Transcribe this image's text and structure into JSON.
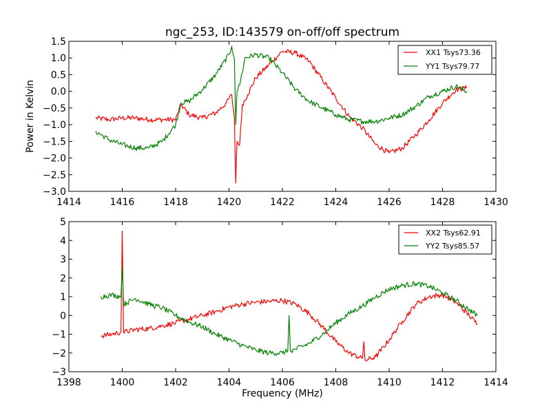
{
  "figure_title": "ngc_253, ID:143579 on-off/off spectrum",
  "colors": {
    "xx": "#ff0000",
    "yy": "#008000",
    "axis": "#000000",
    "background": "#ffffff"
  },
  "chart_data": [
    {
      "type": "line",
      "title": "ngc_253, ID:143579 on-off/off spectrum",
      "xlabel": "",
      "ylabel": "Power in Kelvin",
      "xlim": [
        1414,
        1430
      ],
      "ylim": [
        -3.0,
        1.5
      ],
      "xticks": [
        "1414",
        "1416",
        "1418",
        "1420",
        "1422",
        "1424",
        "1426",
        "1428",
        "1430"
      ],
      "yticks": [
        "1.5",
        "1.0",
        "0.5",
        "0.0",
        "−0.5",
        "−1.0",
        "−1.5",
        "−2.0",
        "−2.5",
        "−3.0"
      ],
      "ytick_values": [
        1.5,
        1.0,
        0.5,
        0.0,
        -0.5,
        -1.0,
        -1.5,
        -2.0,
        -2.5,
        -3.0
      ],
      "xtick_values": [
        1414,
        1416,
        1418,
        1420,
        1422,
        1424,
        1426,
        1428,
        1430
      ],
      "grid": false,
      "legend_position": "top-right",
      "series": [
        {
          "name": "XX1 Tsys73.36",
          "color": "#ff0000",
          "x": [
            1415.0,
            1415.5,
            1416.0,
            1416.5,
            1417.0,
            1417.5,
            1418.0,
            1418.2,
            1418.5,
            1419.0,
            1419.5,
            1419.9,
            1420.1,
            1420.2,
            1420.25,
            1420.3,
            1420.4,
            1420.5,
            1420.7,
            1421.0,
            1421.5,
            1422.0,
            1422.5,
            1423.0,
            1423.5,
            1424.0,
            1424.5,
            1425.0,
            1425.5,
            1426.0,
            1426.5,
            1427.0,
            1427.5,
            1428.0,
            1428.5,
            1428.9
          ],
          "y": [
            -0.8,
            -0.85,
            -0.8,
            -0.8,
            -0.85,
            -0.85,
            -0.85,
            -0.4,
            -0.7,
            -0.8,
            -0.65,
            -0.35,
            -0.1,
            -0.8,
            -2.75,
            -1.5,
            -1.6,
            -0.4,
            -0.1,
            0.4,
            0.8,
            1.2,
            1.15,
            0.9,
            0.35,
            -0.2,
            -0.75,
            -1.1,
            -1.6,
            -1.85,
            -1.7,
            -1.3,
            -0.85,
            -0.35,
            0.05,
            0.1
          ]
        },
        {
          "name": "YY1 Tsys79.77",
          "color": "#008000",
          "x": [
            1415.0,
            1415.5,
            1416.0,
            1416.5,
            1417.0,
            1417.5,
            1418.0,
            1418.2,
            1418.5,
            1419.0,
            1419.5,
            1420.0,
            1420.1,
            1420.2,
            1420.25,
            1420.3,
            1420.4,
            1420.6,
            1421.0,
            1421.5,
            1422.0,
            1422.5,
            1423.0,
            1423.5,
            1424.0,
            1424.5,
            1425.0,
            1425.5,
            1426.0,
            1426.5,
            1427.0,
            1427.5,
            1428.0,
            1428.5,
            1428.9
          ],
          "y": [
            -1.2,
            -1.45,
            -1.6,
            -1.7,
            -1.7,
            -1.5,
            -1.0,
            -0.35,
            -0.3,
            0.05,
            0.5,
            1.1,
            1.35,
            1.0,
            -1.0,
            0.0,
            0.2,
            1.0,
            1.1,
            1.0,
            0.55,
            0.05,
            -0.3,
            -0.5,
            -0.7,
            -0.85,
            -0.9,
            -0.9,
            -0.8,
            -0.7,
            -0.45,
            -0.15,
            0.0,
            0.15,
            0.0
          ]
        }
      ]
    },
    {
      "type": "line",
      "title": "",
      "xlabel": "Frequency (MHz)",
      "ylabel": "",
      "xlim": [
        1398,
        1414
      ],
      "ylim": [
        -3,
        5
      ],
      "xticks": [
        "1398",
        "1400",
        "1402",
        "1404",
        "1406",
        "1408",
        "1410",
        "1412",
        "1414"
      ],
      "yticks": [
        "5",
        "4",
        "3",
        "2",
        "1",
        "0",
        "−1",
        "−2",
        "−3"
      ],
      "ytick_values": [
        5,
        4,
        3,
        2,
        1,
        0,
        -1,
        -2,
        -3
      ],
      "xtick_values": [
        1398,
        1400,
        1402,
        1404,
        1406,
        1408,
        1410,
        1412,
        1414
      ],
      "grid": false,
      "legend_position": "top-right",
      "series": [
        {
          "name": "XX2 Tsys62.91",
          "color": "#ff0000",
          "x": [
            1399.2,
            1399.6,
            1399.95,
            1400.0,
            1400.05,
            1400.5,
            1401.0,
            1401.5,
            1402.0,
            1402.5,
            1403.0,
            1403.5,
            1404.0,
            1404.5,
            1405.0,
            1405.5,
            1406.0,
            1406.5,
            1407.0,
            1407.5,
            1408.0,
            1408.5,
            1409.0,
            1409.05,
            1409.1,
            1409.5,
            1410.0,
            1410.5,
            1411.0,
            1411.5,
            1412.0,
            1412.5,
            1413.0,
            1413.3
          ],
          "y": [
            -1.1,
            -1.0,
            -0.9,
            4.5,
            -0.9,
            -0.75,
            -0.7,
            -0.55,
            -0.4,
            -0.2,
            0.0,
            0.2,
            0.45,
            0.6,
            0.7,
            0.75,
            0.8,
            0.6,
            0.1,
            -0.6,
            -1.4,
            -2.0,
            -2.3,
            -1.4,
            -2.4,
            -2.2,
            -1.3,
            -0.3,
            0.6,
            1.0,
            1.1,
            0.7,
            0.0,
            -0.45
          ]
        },
        {
          "name": "YY2 Tsys85.57",
          "color": "#008000",
          "x": [
            1399.2,
            1399.6,
            1399.95,
            1400.0,
            1400.05,
            1400.5,
            1401.0,
            1401.5,
            1402.0,
            1402.5,
            1403.0,
            1403.5,
            1404.0,
            1404.5,
            1405.0,
            1405.5,
            1406.0,
            1406.2,
            1406.25,
            1406.3,
            1406.5,
            1407.0,
            1407.5,
            1408.0,
            1408.5,
            1409.0,
            1409.5,
            1410.0,
            1410.5,
            1411.0,
            1411.5,
            1412.0,
            1412.5,
            1413.0,
            1413.3
          ],
          "y": [
            1.0,
            1.1,
            1.0,
            2.6,
            0.6,
            0.9,
            0.6,
            0.4,
            0.0,
            -0.35,
            -0.6,
            -1.0,
            -1.3,
            -1.6,
            -1.85,
            -2.0,
            -2.0,
            -1.9,
            0.0,
            -1.9,
            -1.8,
            -1.5,
            -1.0,
            -0.4,
            0.1,
            0.5,
            1.0,
            1.4,
            1.6,
            1.7,
            1.55,
            1.2,
            0.8,
            0.3,
            0.0
          ]
        }
      ]
    }
  ]
}
